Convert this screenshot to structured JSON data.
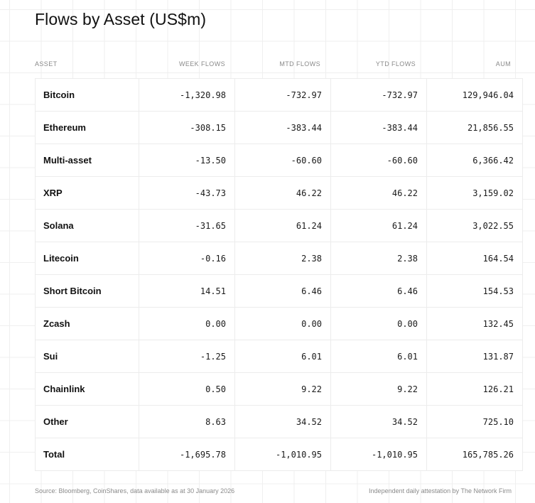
{
  "title": "Flows by Asset (US$m)",
  "chart_data": {
    "type": "table",
    "columns": [
      "ASSET",
      "WEEK FLOWS",
      "MTD FLOWS",
      "YTD FLOWS",
      "AUM"
    ],
    "rows": [
      {
        "asset": "Bitcoin",
        "week": "-1,320.98",
        "mtd": "-732.97",
        "ytd": "-732.97",
        "aum": "129,946.04"
      },
      {
        "asset": "Ethereum",
        "week": "-308.15",
        "mtd": "-383.44",
        "ytd": "-383.44",
        "aum": "21,856.55"
      },
      {
        "asset": "Multi-asset",
        "week": "-13.50",
        "mtd": "-60.60",
        "ytd": "-60.60",
        "aum": "6,366.42"
      },
      {
        "asset": "XRP",
        "week": "-43.73",
        "mtd": "46.22",
        "ytd": "46.22",
        "aum": "3,159.02"
      },
      {
        "asset": "Solana",
        "week": "-31.65",
        "mtd": "61.24",
        "ytd": "61.24",
        "aum": "3,022.55"
      },
      {
        "asset": "Litecoin",
        "week": "-0.16",
        "mtd": "2.38",
        "ytd": "2.38",
        "aum": "164.54"
      },
      {
        "asset": "Short Bitcoin",
        "week": "14.51",
        "mtd": "6.46",
        "ytd": "6.46",
        "aum": "154.53"
      },
      {
        "asset": "Zcash",
        "week": "0.00",
        "mtd": "0.00",
        "ytd": "0.00",
        "aum": "132.45"
      },
      {
        "asset": "Sui",
        "week": "-1.25",
        "mtd": "6.01",
        "ytd": "6.01",
        "aum": "131.87"
      },
      {
        "asset": "Chainlink",
        "week": "0.50",
        "mtd": "9.22",
        "ytd": "9.22",
        "aum": "126.21"
      },
      {
        "asset": "Other",
        "week": "8.63",
        "mtd": "34.52",
        "ytd": "34.52",
        "aum": "725.10"
      },
      {
        "asset": "Total",
        "week": "-1,695.78",
        "mtd": "-1,010.95",
        "ytd": "-1,010.95",
        "aum": "165,785.26"
      }
    ]
  },
  "footer": {
    "source": "Source: Bloomberg, CoinShares, data available as at 30 January 2026",
    "attestation": "Independent daily attestation by The Network Firm"
  }
}
